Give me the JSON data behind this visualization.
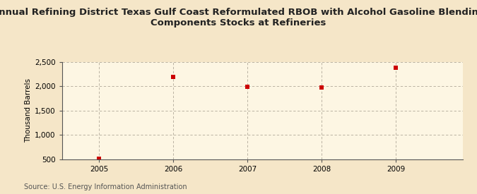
{
  "title": "Annual Refining District Texas Gulf Coast Reformulated RBOB with Alcohol Gasoline Blending\nComponents Stocks at Refineries",
  "ylabel": "Thousand Barrels",
  "source": "Source: U.S. Energy Information Administration",
  "x_values": [
    2005,
    2006,
    2007,
    2008,
    2009
  ],
  "y_values": [
    510,
    2190,
    1990,
    1970,
    2390
  ],
  "ylim": [
    500,
    2500
  ],
  "yticks": [
    500,
    1000,
    1500,
    2000,
    2500
  ],
  "ytick_labels": [
    "500",
    "1,000",
    "1,500",
    "2,000",
    "2,500"
  ],
  "xlim": [
    2004.5,
    2009.9
  ],
  "xticks": [
    2005,
    2006,
    2007,
    2008,
    2009
  ],
  "marker_color": "#cc0000",
  "marker_size": 4,
  "bg_color": "#f5e6c8",
  "plot_bg_color": "#fdf6e3",
  "grid_color": "#b0a898",
  "title_fontsize": 9.5,
  "axis_label_fontsize": 7.5,
  "tick_fontsize": 7.5,
  "source_fontsize": 7.0,
  "spine_color": "#555555"
}
